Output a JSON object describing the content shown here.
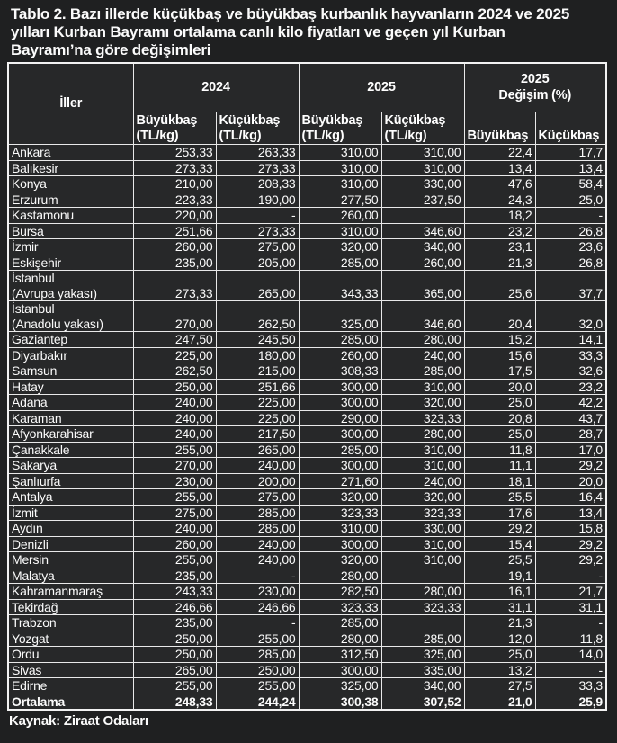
{
  "title": "Tablo 2. Bazı illerde küçükbaş ve büyükbaş kurbanlık hayvanların 2024 ve 2025\nyılları Kurban Bayramı ortalama canlı kilo fiyatları ve geçen yıl Kurban\nBayramı’na göre değişimleri",
  "source": "Kaynak: Ziraat Odaları",
  "colors": {
    "page_background": "#1f2021",
    "cell_background": "#272829",
    "border": "#e9e9e9",
    "text": "#fbfbfb"
  },
  "table": {
    "header": {
      "iller": "İller",
      "y2024": "2024",
      "y2025": "2025",
      "change": "2025\nDeğişim (%)"
    },
    "sub_headers": [
      "Büyükbaş\n(TL/kg)",
      "Küçükbaş\n(TL/kg)",
      "Büyükbaş\n(TL/kg)",
      "Küçükbaş\n(TL/kg)",
      "Büyükbaş",
      "Küçükbaş"
    ],
    "rows": [
      {
        "name": "Ankara",
        "values": [
          "253,33",
          "263,33",
          "310,00",
          "310,00",
          "22,4",
          "17,7"
        ]
      },
      {
        "name": "Balıkesir",
        "values": [
          "273,33",
          "273,33",
          "310,00",
          "310,00",
          "13,4",
          "13,4"
        ]
      },
      {
        "name": "Konya",
        "values": [
          "210,00",
          "208,33",
          "310,00",
          "330,00",
          "47,6",
          "58,4"
        ]
      },
      {
        "name": "Erzurum",
        "values": [
          "223,33",
          "190,00",
          "277,50",
          "237,50",
          "24,3",
          "25,0"
        ]
      },
      {
        "name": "Kastamonu",
        "values": [
          "220,00",
          "-",
          "260,00",
          "",
          "18,2",
          "-"
        ]
      },
      {
        "name": "Bursa",
        "values": [
          "251,66",
          "273,33",
          "310,00",
          "346,60",
          "23,2",
          "26,8"
        ]
      },
      {
        "name": "İzmir",
        "values": [
          "260,00",
          "275,00",
          "320,00",
          "340,00",
          "23,1",
          "23,6"
        ]
      },
      {
        "name": "Eskişehir",
        "values": [
          "235,00",
          "205,00",
          "285,00",
          "260,00",
          "21,3",
          "26,8"
        ]
      },
      {
        "name": "İstanbul\n(Avrupa yakası)",
        "values": [
          "273,33",
          "265,00",
          "343,33",
          "365,00",
          "25,6",
          "37,7"
        ]
      },
      {
        "name": "İstanbul\n(Anadolu yakası)",
        "values": [
          "270,00",
          "262,50",
          "325,00",
          "346,60",
          "20,4",
          "32,0"
        ]
      },
      {
        "name": "Gaziantep",
        "values": [
          "247,50",
          "245,50",
          "285,00",
          "280,00",
          "15,2",
          "14,1"
        ]
      },
      {
        "name": "Diyarbakır",
        "values": [
          "225,00",
          "180,00",
          "260,00",
          "240,00",
          "15,6",
          "33,3"
        ]
      },
      {
        "name": "Samsun",
        "values": [
          "262,50",
          "215,00",
          "308,33",
          "285,00",
          "17,5",
          "32,6"
        ]
      },
      {
        "name": "Hatay",
        "values": [
          "250,00",
          "251,66",
          "300,00",
          "310,00",
          "20,0",
          "23,2"
        ]
      },
      {
        "name": "Adana",
        "values": [
          "240,00",
          "225,00",
          "300,00",
          "320,00",
          "25,0",
          "42,2"
        ]
      },
      {
        "name": "Karaman",
        "values": [
          "240,00",
          "225,00",
          "290,00",
          "323,33",
          "20,8",
          "43,7"
        ]
      },
      {
        "name": "Afyonkarahisar",
        "values": [
          "240,00",
          "217,50",
          "300,00",
          "280,00",
          "25,0",
          "28,7"
        ]
      },
      {
        "name": "Çanakkale",
        "values": [
          "255,00",
          "265,00",
          "285,00",
          "310,00",
          "11,8",
          "17,0"
        ]
      },
      {
        "name": "Sakarya",
        "values": [
          "270,00",
          "240,00",
          "300,00",
          "310,00",
          "11,1",
          "29,2"
        ]
      },
      {
        "name": "Şanlıurfa",
        "values": [
          "230,00",
          "200,00",
          "271,60",
          "240,00",
          "18,1",
          "20,0"
        ]
      },
      {
        "name": "Antalya",
        "values": [
          "255,00",
          "275,00",
          "320,00",
          "320,00",
          "25,5",
          "16,4"
        ]
      },
      {
        "name": "İzmit",
        "values": [
          "275,00",
          "285,00",
          "323,33",
          "323,33",
          "17,6",
          "13,4"
        ]
      },
      {
        "name": "Aydın",
        "values": [
          "240,00",
          "285,00",
          "310,00",
          "330,00",
          "29,2",
          "15,8"
        ]
      },
      {
        "name": "Denizli",
        "values": [
          "260,00",
          "240,00",
          "300,00",
          "310,00",
          "15,4",
          "29,2"
        ]
      },
      {
        "name": "Mersin",
        "values": [
          "255,00",
          "240,00",
          "320,00",
          "310,00",
          "25,5",
          "29,2"
        ]
      },
      {
        "name": "Malatya",
        "values": [
          "235,00",
          "-",
          "280,00",
          "",
          "19,1",
          "-"
        ]
      },
      {
        "name": "Kahramanmaraş",
        "values": [
          "243,33",
          "230,00",
          "282,50",
          "280,00",
          "16,1",
          "21,7"
        ]
      },
      {
        "name": "Tekirdağ",
        "values": [
          "246,66",
          "246,66",
          "323,33",
          "323,33",
          "31,1",
          "31,1"
        ]
      },
      {
        "name": "Trabzon",
        "values": [
          "235,00",
          "-",
          "285,00",
          "",
          "21,3",
          "-"
        ]
      },
      {
        "name": "Yozgat",
        "values": [
          "250,00",
          "255,00",
          "280,00",
          "285,00",
          "12,0",
          "11,8"
        ]
      },
      {
        "name": "Ordu",
        "values": [
          "250,00",
          "285,00",
          "312,50",
          "325,00",
          "25,0",
          "14,0"
        ]
      },
      {
        "name": "Sivas",
        "values": [
          "265,00",
          "250,00",
          "300,00",
          "335,00",
          "13,2",
          "-"
        ]
      },
      {
        "name": "Edirne",
        "values": [
          "255,00",
          "255,00",
          "325,00",
          "340,00",
          "27,5",
          "33,3"
        ]
      }
    ],
    "total_row": {
      "name": "Ortalama",
      "values": [
        "248,33",
        "244,24",
        "300,38",
        "307,52",
        "21,0",
        "25,9"
      ]
    }
  }
}
